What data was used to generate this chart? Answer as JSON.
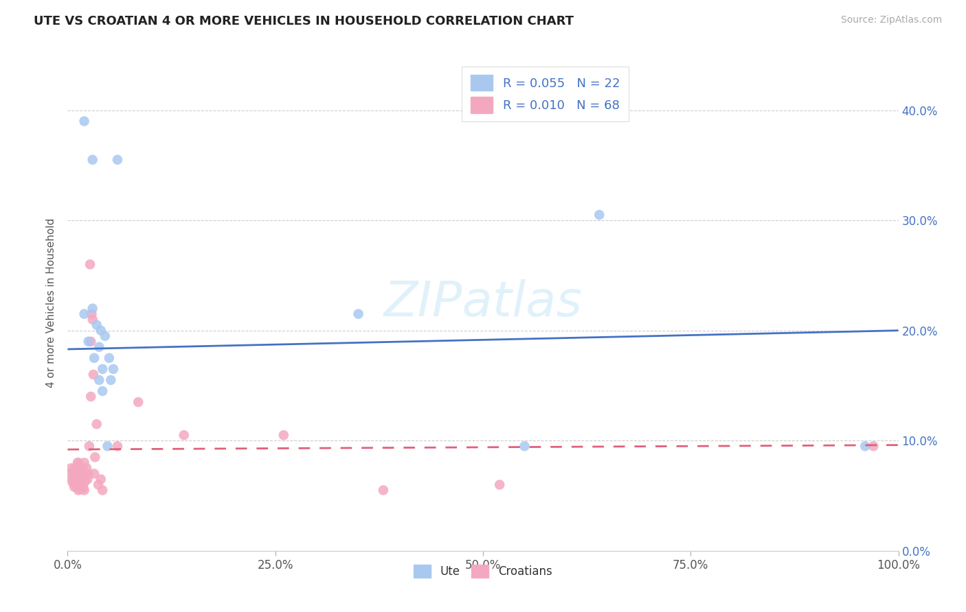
{
  "title": "UTE VS CROATIAN 4 OR MORE VEHICLES IN HOUSEHOLD CORRELATION CHART",
  "source": "Source: ZipAtlas.com",
  "xlabel": "",
  "ylabel": "4 or more Vehicles in Household",
  "xlim": [
    0,
    1.0
  ],
  "ylim": [
    0,
    0.45
  ],
  "xticks": [
    0,
    0.25,
    0.5,
    0.75,
    1.0
  ],
  "xtick_labels": [
    "0.0%",
    "25.0%",
    "50.0%",
    "75.0%",
    "100.0%"
  ],
  "yticks": [
    0,
    0.1,
    0.2,
    0.3,
    0.4
  ],
  "ytick_labels": [
    "0.0%",
    "10.0%",
    "20.0%",
    "30.0%",
    "40.0%"
  ],
  "ute_R": "0.055",
  "ute_N": "22",
  "croatian_R": "0.010",
  "croatian_N": "68",
  "ute_color": "#a8c8f0",
  "croatian_color": "#f4a8c0",
  "ute_line_color": "#4472c4",
  "croatian_line_color": "#e0607a",
  "background_color": "#ffffff",
  "grid_color": "#cccccc",
  "watermark": "ZIPatlas",
  "ute_line_start_y": 0.183,
  "ute_line_end_y": 0.2,
  "croatian_line_start_y": 0.092,
  "croatian_line_end_y": 0.096,
  "ute_x": [
    0.02,
    0.03,
    0.06,
    0.02,
    0.03,
    0.035,
    0.04,
    0.045,
    0.025,
    0.038,
    0.032,
    0.042,
    0.05,
    0.038,
    0.055,
    0.052,
    0.042,
    0.048,
    0.35,
    0.55,
    0.64,
    0.96
  ],
  "ute_y": [
    0.39,
    0.355,
    0.355,
    0.215,
    0.22,
    0.205,
    0.2,
    0.195,
    0.19,
    0.185,
    0.175,
    0.165,
    0.175,
    0.155,
    0.165,
    0.155,
    0.145,
    0.095,
    0.215,
    0.095,
    0.305,
    0.095
  ],
  "croatian_x": [
    0.003,
    0.004,
    0.005,
    0.006,
    0.007,
    0.007,
    0.008,
    0.008,
    0.009,
    0.009,
    0.01,
    0.01,
    0.01,
    0.011,
    0.011,
    0.011,
    0.012,
    0.012,
    0.013,
    0.013,
    0.013,
    0.014,
    0.014,
    0.014,
    0.015,
    0.015,
    0.015,
    0.015,
    0.016,
    0.016,
    0.016,
    0.017,
    0.017,
    0.017,
    0.017,
    0.018,
    0.018,
    0.018,
    0.019,
    0.019,
    0.02,
    0.02,
    0.02,
    0.021,
    0.022,
    0.023,
    0.024,
    0.025,
    0.026,
    0.027,
    0.028,
    0.028,
    0.029,
    0.03,
    0.031,
    0.032,
    0.033,
    0.035,
    0.037,
    0.04,
    0.042,
    0.06,
    0.085,
    0.14,
    0.26,
    0.38,
    0.52,
    0.97
  ],
  "croatian_y": [
    0.07,
    0.075,
    0.065,
    0.062,
    0.068,
    0.072,
    0.065,
    0.058,
    0.075,
    0.063,
    0.068,
    0.072,
    0.063,
    0.075,
    0.065,
    0.058,
    0.08,
    0.07,
    0.055,
    0.08,
    0.062,
    0.07,
    0.063,
    0.058,
    0.068,
    0.073,
    0.065,
    0.056,
    0.073,
    0.068,
    0.072,
    0.063,
    0.065,
    0.075,
    0.07,
    0.063,
    0.065,
    0.06,
    0.057,
    0.065,
    0.072,
    0.08,
    0.055,
    0.063,
    0.07,
    0.075,
    0.065,
    0.07,
    0.095,
    0.26,
    0.14,
    0.19,
    0.215,
    0.21,
    0.16,
    0.07,
    0.085,
    0.115,
    0.06,
    0.065,
    0.055,
    0.095,
    0.135,
    0.105,
    0.105,
    0.055,
    0.06,
    0.095
  ]
}
